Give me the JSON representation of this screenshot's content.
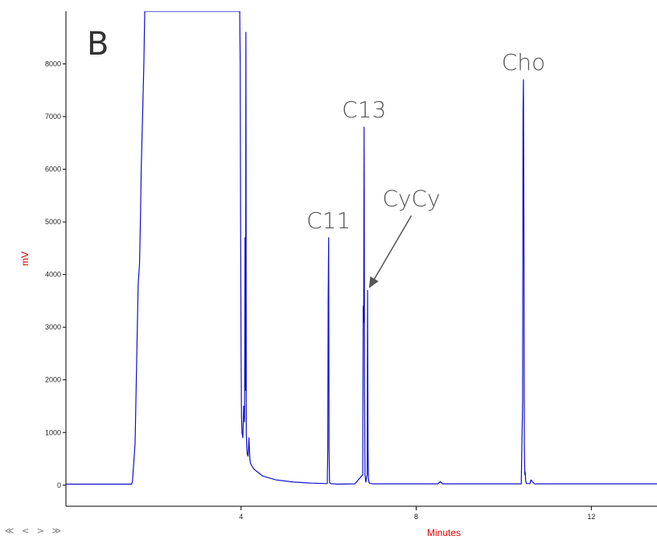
{
  "panel_letter": "B",
  "nav": {
    "first": "≪",
    "prev": "<",
    "next": ">",
    "last": "≫"
  },
  "colors": {
    "trace": "#1010cc",
    "axis_title": "#e00000",
    "annotation": "#555555"
  },
  "chart_data": {
    "type": "line",
    "xlabel": "Minutes",
    "ylabel": "mV",
    "xlim": [
      0.0,
      13.5
    ],
    "ylim": [
      -400,
      9000
    ],
    "x_ticks": [
      4,
      8,
      12
    ],
    "y_ticks": [
      0,
      1000,
      2000,
      3000,
      4000,
      5000,
      6000,
      7000,
      8000
    ],
    "grid": false,
    "series": [
      {
        "x": [
          0.0,
          1.5,
          1.52,
          1.58,
          1.65,
          1.68,
          1.7,
          1.72,
          1.75,
          1.78,
          1.8,
          1.85,
          3.8,
          3.97,
          3.98,
          3.99,
          4.0,
          4.01,
          4.02,
          4.04,
          4.06,
          4.08,
          4.09,
          4.1,
          4.11,
          4.12,
          4.13,
          4.14,
          4.16,
          4.18,
          4.2,
          4.21,
          4.22,
          4.3,
          4.5,
          4.8,
          5.2,
          5.6,
          5.97,
          5.98,
          5.99,
          6.0,
          6.01,
          6.02,
          6.03,
          6.05,
          6.2,
          6.6,
          6.78,
          6.79,
          6.8,
          6.81,
          6.82,
          6.83,
          6.85,
          6.88,
          6.89,
          6.9,
          6.91,
          6.92,
          6.93,
          7.0,
          8.0,
          8.5,
          8.55,
          8.6,
          9.5,
          10.4,
          10.43,
          10.44,
          10.45,
          10.46,
          10.47,
          10.48,
          10.49,
          10.5,
          10.52,
          10.6,
          10.62,
          10.66,
          10.7,
          13.5
        ],
        "y": [
          20,
          20,
          80,
          800,
          3800,
          4200,
          5000,
          6000,
          7000,
          8000,
          9000,
          9000,
          9000,
          9000,
          8000,
          5000,
          2500,
          1300,
          1000,
          900,
          1500,
          1200,
          4700,
          1800,
          8600,
          1000,
          700,
          600,
          550,
          900,
          500,
          450,
          400,
          300,
          170,
          100,
          60,
          40,
          30,
          700,
          3500,
          4700,
          700,
          60,
          40,
          30,
          20,
          25,
          200,
          3400,
          3100,
          6800,
          2000,
          200,
          60,
          200,
          3700,
          700,
          120,
          60,
          40,
          25,
          25,
          25,
          70,
          25,
          25,
          25,
          1600,
          7100,
          7700,
          5000,
          800,
          200,
          250,
          80,
          30,
          30,
          100,
          60,
          25,
          25
        ]
      }
    ],
    "annotations": [
      {
        "text": "C11",
        "x": 6.0,
        "y": 4700
      },
      {
        "text": "C13",
        "x": 6.81,
        "y": 6800
      },
      {
        "text": "CyCy",
        "x": 6.88,
        "y": 3700,
        "arrow": true
      },
      {
        "text": "Cho",
        "x": 10.45,
        "y": 7700
      }
    ]
  }
}
